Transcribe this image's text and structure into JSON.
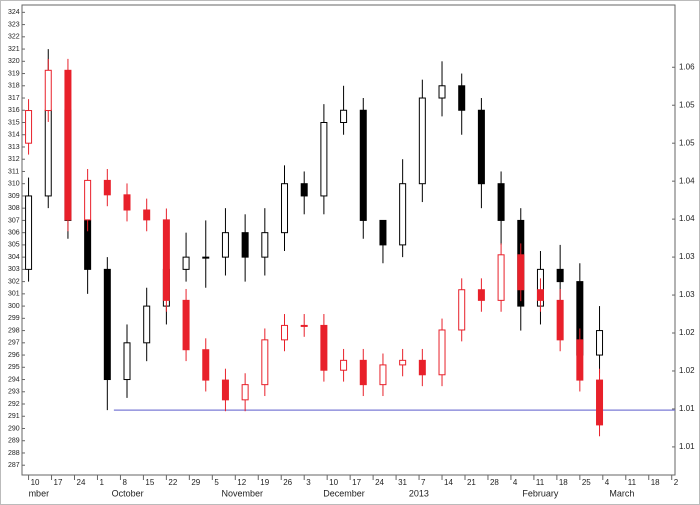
{
  "chart_data": {
    "type": "candlestick",
    "x": [
      0,
      6,
      12,
      18,
      24,
      30,
      36,
      42,
      48,
      54,
      60,
      66,
      72,
      78,
      84,
      90,
      96,
      102,
      108,
      114,
      120,
      126,
      132,
      138,
      144,
      150,
      156,
      162,
      168,
      174
    ],
    "xlim": [
      -2,
      197
    ],
    "xticks": [
      {
        "value": 0,
        "label": "10"
      },
      {
        "value": 7,
        "label": "17"
      },
      {
        "value": 14,
        "label": "24"
      },
      {
        "value": 21,
        "label": "1"
      },
      {
        "value": 28,
        "label": "8"
      },
      {
        "value": 35,
        "label": "15"
      },
      {
        "value": 42,
        "label": "22"
      },
      {
        "value": 49,
        "label": "29"
      },
      {
        "value": 56,
        "label": "5"
      },
      {
        "value": 63,
        "label": "12"
      },
      {
        "value": 70,
        "label": "19"
      },
      {
        "value": 77,
        "label": "26"
      },
      {
        "value": 84,
        "label": "3"
      },
      {
        "value": 91,
        "label": "10"
      },
      {
        "value": 98,
        "label": "17"
      },
      {
        "value": 105,
        "label": "24"
      },
      {
        "value": 112,
        "label": "31"
      },
      {
        "value": 119,
        "label": "7"
      },
      {
        "value": 126,
        "label": "14"
      },
      {
        "value": 133,
        "label": "21"
      },
      {
        "value": 140,
        "label": "28"
      },
      {
        "value": 147,
        "label": "4"
      },
      {
        "value": 154,
        "label": "11"
      },
      {
        "value": 161,
        "label": "18"
      },
      {
        "value": 168,
        "label": "25"
      },
      {
        "value": 175,
        "label": "4"
      },
      {
        "value": 182,
        "label": "11"
      },
      {
        "value": 189,
        "label": "18"
      },
      {
        "value": 196,
        "label": "2"
      }
    ],
    "month_labels": [
      {
        "value": 0,
        "label": "mber"
      },
      {
        "value": 25.3,
        "label": "October"
      },
      {
        "value": 58.8,
        "label": "November"
      },
      {
        "value": 89.8,
        "label": "December"
      },
      {
        "value": 115.9,
        "label": "2013"
      },
      {
        "value": 150.5,
        "label": "February"
      },
      {
        "value": 177,
        "label": "March"
      }
    ],
    "ylim": [
      286.2,
      324.6
    ],
    "yticks": [
      287,
      288,
      289,
      290,
      291,
      292,
      293,
      294,
      295,
      296,
      297,
      298,
      299,
      300,
      301,
      302,
      303,
      304,
      305,
      306,
      307,
      308,
      309,
      310,
      311,
      312,
      313,
      314,
      315,
      316,
      317,
      318,
      319,
      320,
      321,
      322,
      323,
      324
    ],
    "y2lim": [
      1.0063,
      1.0682
    ],
    "y2ticks": [
      {
        "value": 1.06,
        "label": "1.06"
      },
      {
        "value": 1.055,
        "label": "1.05"
      },
      {
        "value": 1.05,
        "label": "1.05"
      },
      {
        "value": 1.045,
        "label": "1.04"
      },
      {
        "value": 1.04,
        "label": "1.04"
      },
      {
        "value": 1.035,
        "label": "1.03"
      },
      {
        "value": 1.03,
        "label": "1.03"
      },
      {
        "value": 1.025,
        "label": "1.02"
      },
      {
        "value": 1.02,
        "label": "1.02"
      },
      {
        "value": 1.015,
        "label": "1.01"
      },
      {
        "value": 1.01,
        "label": "1.01"
      }
    ],
    "reference_line": {
      "value": 291.5,
      "from_x": 26,
      "color": "#7b7bd6"
    },
    "series": [
      {
        "color": "#000000",
        "axis": "y",
        "open": [
          303,
          309,
          316,
          307,
          303,
          294,
          297,
          300,
          303,
          304,
          304,
          306,
          304,
          306,
          310,
          309,
          315,
          316,
          307,
          305,
          310,
          317,
          318,
          316,
          310,
          307,
          300,
          303,
          302,
          296
        ],
        "high": [
          310.5,
          321,
          317,
          309,
          304,
          298.5,
          301.5,
          305,
          306,
          307,
          308,
          307.5,
          308,
          311.5,
          311,
          316.5,
          318,
          317,
          307,
          312,
          318.5,
          320,
          319,
          317,
          311,
          308,
          304.5,
          305,
          303.5,
          300
        ],
        "low": [
          302,
          308,
          305.5,
          301,
          291.5,
          292.5,
          295.5,
          298.5,
          302,
          301.5,
          302.5,
          302,
          302.5,
          304.5,
          307.5,
          307.5,
          314,
          305.5,
          303.5,
          304,
          308.5,
          315.5,
          314,
          308,
          305,
          298,
          298.5,
          299,
          294,
          294.5
        ],
        "close": [
          309,
          316,
          307,
          303,
          294,
          297,
          300,
          303,
          304,
          304,
          306,
          304,
          306,
          310,
          309,
          315,
          316,
          307,
          305,
          310,
          317,
          318,
          316,
          310,
          307,
          300,
          303,
          302,
          296,
          298
        ]
      },
      {
        "color": "#e8202a",
        "axis": "y2",
        "open": [
          1.05,
          1.0543,
          1.0596,
          1.0399,
          1.0451,
          1.0432,
          1.0412,
          1.0399,
          1.0293,
          1.0228,
          1.0188,
          1.0162,
          1.0182,
          1.0241,
          1.026,
          1.026,
          1.0201,
          1.0214,
          1.0182,
          1.0208,
          1.0214,
          1.0195,
          1.0254,
          1.0307,
          1.0293,
          1.0353,
          1.0307,
          1.0293,
          1.0241,
          1.0188
        ],
        "high": [
          1.0558,
          1.0611,
          1.0611,
          1.0466,
          1.0466,
          1.0447,
          1.0427,
          1.0414,
          1.0308,
          1.0243,
          1.0203,
          1.0197,
          1.0256,
          1.0275,
          1.0275,
          1.0275,
          1.0229,
          1.0229,
          1.0223,
          1.0229,
          1.0229,
          1.0269,
          1.0322,
          1.0322,
          1.0368,
          1.0368,
          1.0322,
          1.0308,
          1.0256,
          1.0203
        ],
        "low": [
          1.0485,
          1.0528,
          1.0384,
          1.0384,
          1.0417,
          1.0397,
          1.0384,
          1.0278,
          1.0213,
          1.0173,
          1.0147,
          1.0147,
          1.0167,
          1.0226,
          1.0245,
          1.0186,
          1.0186,
          1.0167,
          1.0167,
          1.0193,
          1.018,
          1.018,
          1.0239,
          1.0278,
          1.0278,
          1.0292,
          1.0278,
          1.0226,
          1.0173,
          1.0114
        ],
        "close": [
          1.0543,
          1.0596,
          1.0399,
          1.0451,
          1.0432,
          1.0412,
          1.0399,
          1.0293,
          1.0228,
          1.0188,
          1.0162,
          1.0182,
          1.0241,
          1.026,
          1.026,
          1.0201,
          1.0214,
          1.0182,
          1.0208,
          1.0214,
          1.0195,
          1.0254,
          1.0307,
          1.0293,
          1.0353,
          1.0307,
          1.0293,
          1.0241,
          1.0188,
          1.0129
        ]
      }
    ]
  }
}
